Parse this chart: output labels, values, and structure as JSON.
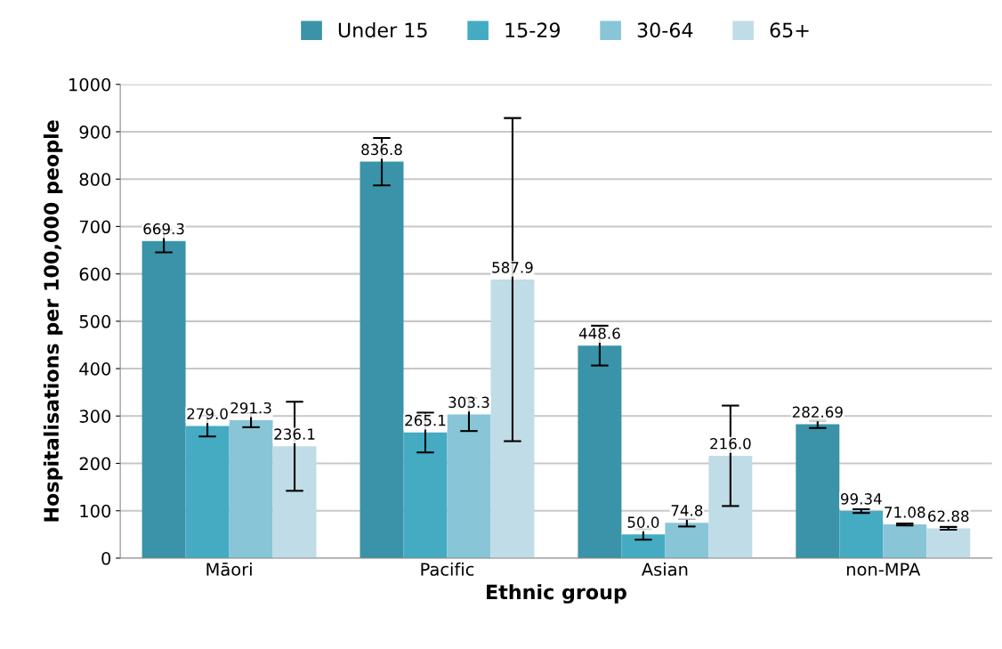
{
  "chart_data": {
    "type": "bar",
    "xlabel": "Ethnic group",
    "ylabel": "Hospitalisations per 100,000 people",
    "categories": [
      "Māori",
      "Pacific",
      "Asian",
      "non-MPA"
    ],
    "series": [
      {
        "name": "Under 15",
        "color": "#3a93a8",
        "values": [
          669.3,
          836.8,
          448.6,
          282.69
        ],
        "errors": [
          24,
          50,
          42,
          8
        ],
        "value_labels": [
          "669.3",
          "836.8",
          "448.6",
          "282.69"
        ]
      },
      {
        "name": "15-29",
        "color": "#45abc3",
        "values": [
          279.0,
          265.1,
          50.0,
          99.34
        ],
        "errors": [
          22,
          42,
          11,
          4
        ],
        "value_labels": [
          "279.0",
          "265.1",
          "50.0",
          "99.34"
        ]
      },
      {
        "name": "30-64",
        "color": "#88c5d7",
        "values": [
          291.3,
          303.3,
          74.8,
          71.08
        ],
        "errors": [
          15,
          35,
          8,
          2
        ],
        "value_labels": [
          "291.3",
          "303.3",
          "74.8",
          "71.08"
        ]
      },
      {
        "name": "65+",
        "color": "#c0dce7",
        "values": [
          236.1,
          587.9,
          216.0,
          62.88
        ],
        "errors": [
          94,
          341,
          106,
          3
        ],
        "value_labels": [
          "236.1",
          "587.9",
          "216.0",
          "62.88"
        ]
      }
    ],
    "ylim": [
      0,
      1000
    ],
    "yticks": [
      0,
      100,
      200,
      300,
      400,
      500,
      600,
      700,
      800,
      900,
      1000
    ],
    "grid": "y",
    "legend": "top"
  }
}
